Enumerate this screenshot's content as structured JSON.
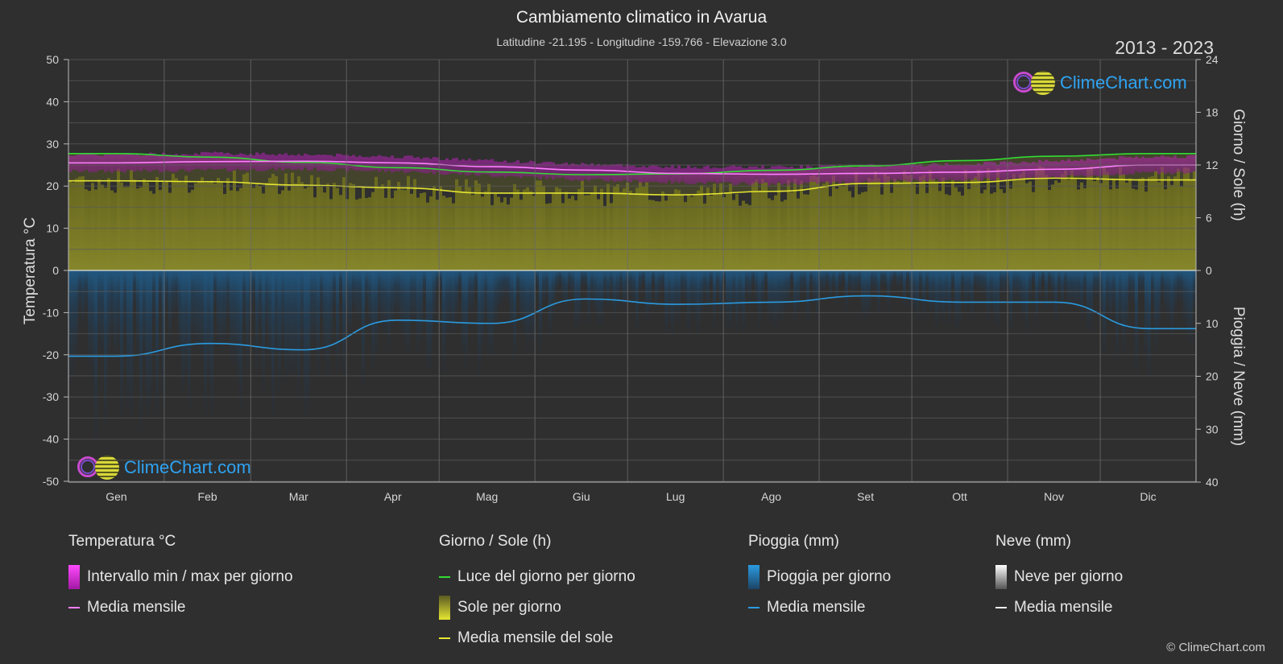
{
  "header": {
    "title": "Cambiamento climatico in Avarua",
    "subtitle": "Latitudine -21.195 - Longitudine -159.766 - Elevazione 3.0",
    "years": "2013 - 2023"
  },
  "branding": {
    "logo_text": "ClimeChart.com",
    "copyright": "© ClimeChart.com"
  },
  "colors": {
    "background": "#2f2f2f",
    "temp_range": "#d81fd8",
    "temp_mean": "#ff80ff",
    "daylight": "#33dd33",
    "sunshine": "#c8c832",
    "sunshine_mean": "#e6e632",
    "rain": "#1f6ea8",
    "rain_mean": "#2b9be0",
    "snow": "#dddddd",
    "logo_text": "#2ea3f2"
  },
  "chart_data": {
    "type": "line",
    "categories": [
      "Gen",
      "Feb",
      "Mar",
      "Apr",
      "Mag",
      "Giu",
      "Lug",
      "Ago",
      "Set",
      "Ott",
      "Nov",
      "Dic"
    ],
    "y_left": {
      "label": "Temperatura °C",
      "range": [
        -50,
        50
      ],
      "ticks": [
        "50",
        "40",
        "30",
        "20",
        "10",
        "0",
        "-10",
        "-20",
        "-30",
        "-40",
        "-50"
      ]
    },
    "y_right_top": {
      "label": "Giorno / Sole (h)",
      "range": [
        0,
        24
      ],
      "ticks": [
        "24",
        "18",
        "12",
        "6",
        "0"
      ]
    },
    "y_right_bottom": {
      "label": "Pioggia / Neve (mm)",
      "range": [
        0,
        40
      ],
      "ticks": [
        "0",
        "10",
        "20",
        "30",
        "40"
      ]
    },
    "grid": true,
    "series": [
      {
        "name": "Media mensile",
        "group": "Temperatura °C",
        "unit": "°C",
        "values": [
          25.5,
          25.8,
          25.9,
          25.5,
          24.6,
          23.8,
          23.0,
          22.8,
          23.0,
          23.3,
          24.0,
          25.0
        ]
      },
      {
        "name": "Intervallo min / max per giorno",
        "group": "Temperatura °C",
        "unit": "°C",
        "min": [
          23.5,
          23.8,
          24.0,
          23.5,
          22.5,
          21.5,
          20.8,
          20.5,
          21.0,
          21.5,
          22.0,
          23.2
        ],
        "max": [
          27.5,
          27.8,
          27.5,
          27.0,
          26.0,
          25.2,
          24.5,
          24.5,
          24.8,
          25.2,
          26.0,
          27.0
        ]
      },
      {
        "name": "Luce del giorno per giorno",
        "group": "Giorno / Sole (h)",
        "unit": "h",
        "values": [
          13.3,
          12.9,
          12.3,
          11.7,
          11.2,
          10.9,
          11.0,
          11.4,
          11.9,
          12.5,
          13.0,
          13.3
        ]
      },
      {
        "name": "Media mensile del sole",
        "group": "Giorno / Sole (h)",
        "unit": "h",
        "values": [
          10.2,
          10.1,
          9.7,
          9.4,
          8.8,
          8.8,
          8.6,
          9.0,
          9.9,
          10.0,
          10.5,
          10.3
        ]
      },
      {
        "name": "Media mensile",
        "group": "Pioggia (mm)",
        "unit": "mm",
        "values": [
          16.2,
          13.8,
          15.0,
          9.4,
          10.0,
          5.4,
          6.4,
          6.0,
          4.8,
          6.0,
          6.0,
          11.0
        ]
      }
    ]
  },
  "legend": {
    "temperature": {
      "title": "Temperatura °C",
      "range_label": "Intervallo min / max per giorno",
      "mean_label": "Media mensile"
    },
    "sun": {
      "title": "Giorno / Sole (h)",
      "daylight_label": "Luce del giorno per giorno",
      "sunshine_label": "Sole per giorno",
      "sun_mean_label": "Media mensile del sole"
    },
    "rain": {
      "title": "Pioggia (mm)",
      "rain_label": "Pioggia per giorno",
      "mean_label": "Media mensile"
    },
    "snow": {
      "title": "Neve (mm)",
      "snow_label": "Neve per giorno",
      "mean_label": "Media mensile"
    }
  }
}
